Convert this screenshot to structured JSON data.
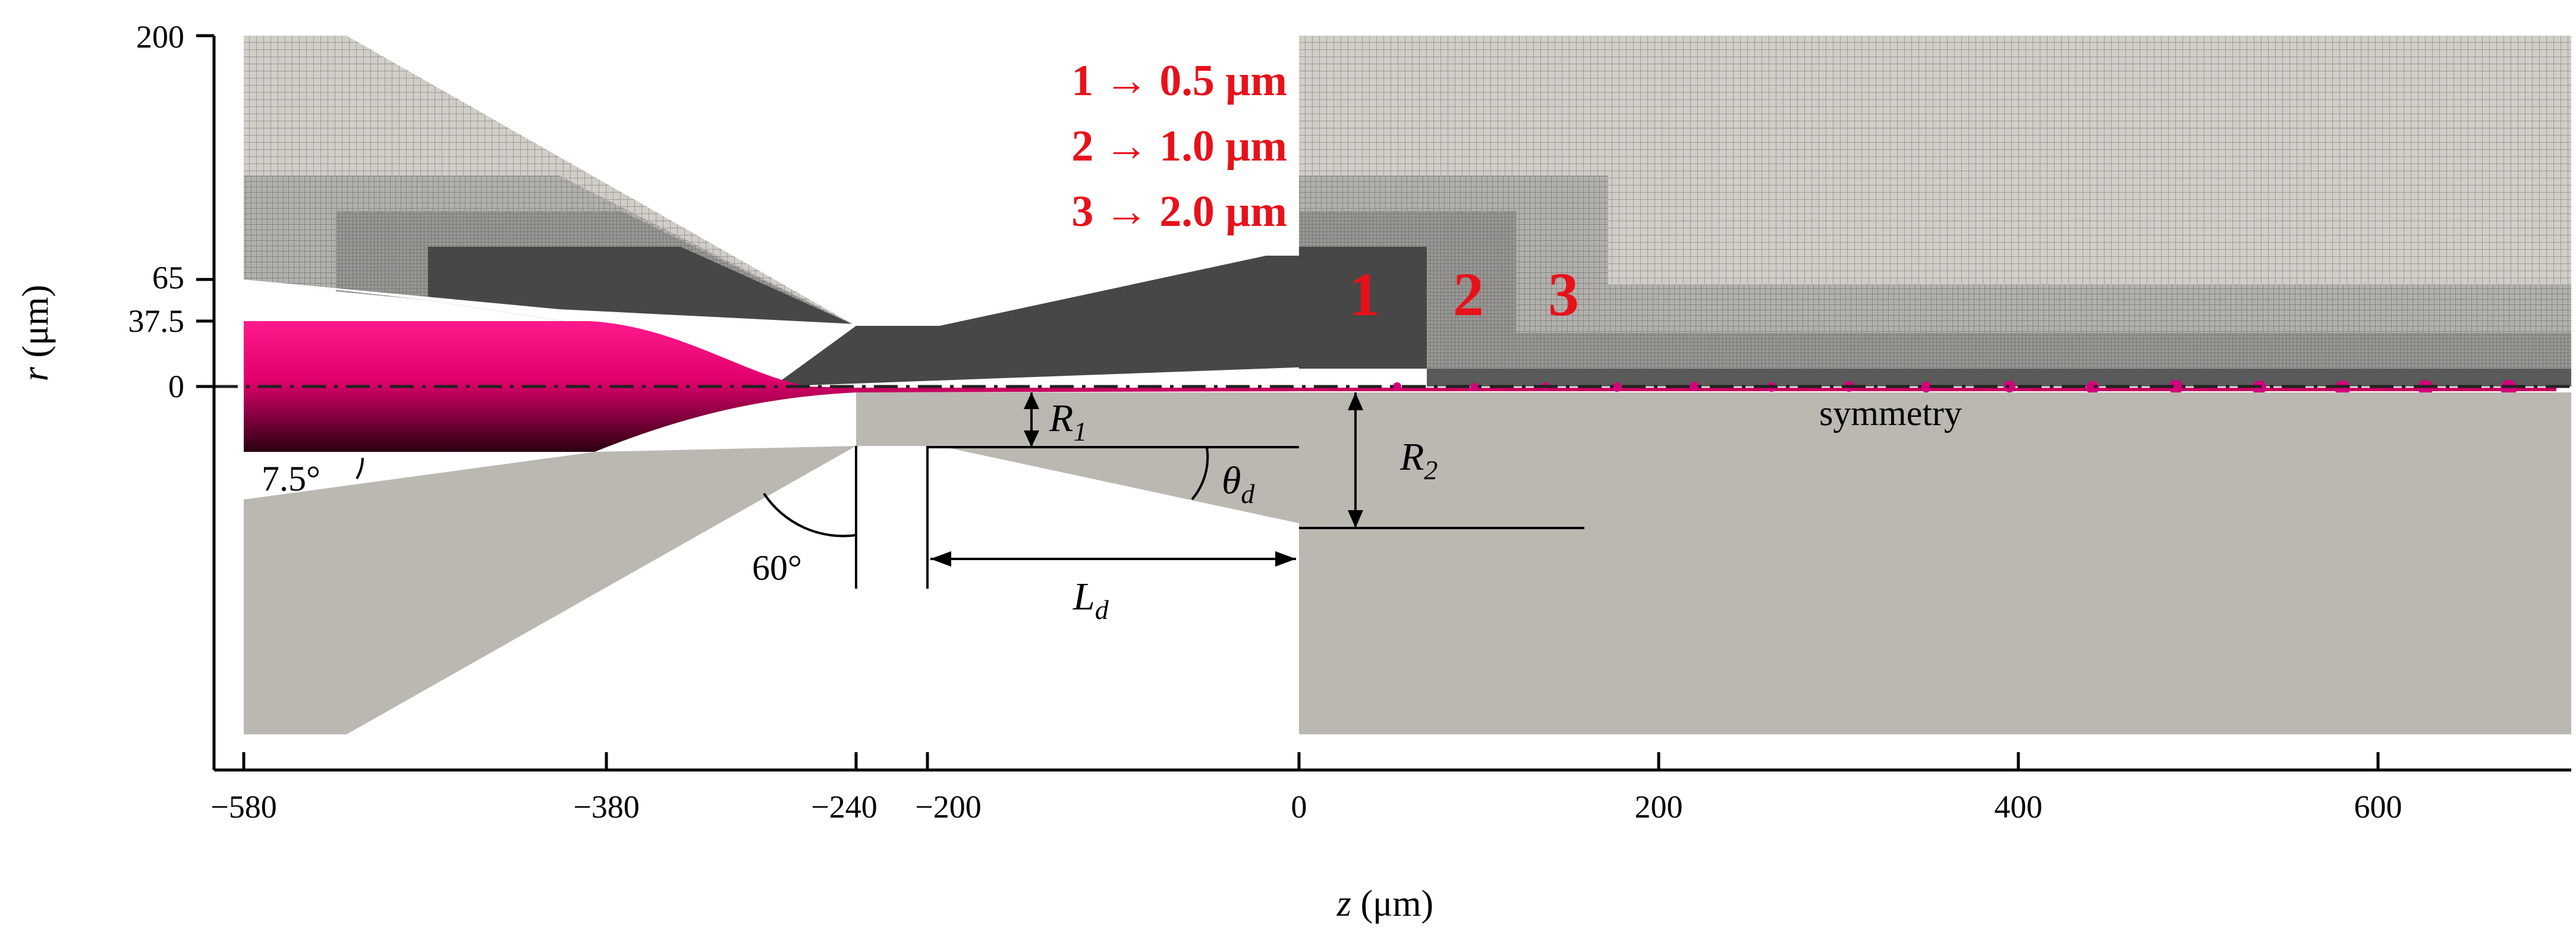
{
  "axes": {
    "x_title": "z (μm)",
    "x_title_var": "z",
    "x_title_unit": " (μm)",
    "y_title_var": "r",
    "y_title_unit": " (μm)",
    "x_ticks": [
      "−580",
      "−380",
      "−240",
      "−200",
      "0",
      "200",
      "400",
      "600"
    ],
    "y_ticks": [
      "200",
      "65",
      "37.5",
      "0"
    ],
    "x_range": [
      -580,
      700
    ],
    "y_range": [
      -195,
      200
    ]
  },
  "legend": [
    {
      "num": "1",
      "text": "1 → 0.5 μm"
    },
    {
      "num": "2",
      "text": "2 → 1.0 μm"
    },
    {
      "num": "3",
      "text": "3 → 2.0 μm"
    }
  ],
  "zone_labels": [
    "1",
    "2",
    "3"
  ],
  "annotations": {
    "symmetry": "symmetry",
    "angle_inlet": "7.5°",
    "angle_contraction": "60°",
    "r1_var": "R",
    "r1_sub": "1",
    "r2_var": "R",
    "r2_sub": "2",
    "theta_var": "θ",
    "theta_sub": "d",
    "ld_var": "L",
    "ld_sub": "d"
  },
  "colors": {
    "fluid_light": "#f5007a",
    "fluid_dark": "#3a0016",
    "legend_red": "#e8111a",
    "mesh_dark": "#4a4a4a",
    "mesh_mid": "#8c8c8c",
    "mesh_light": "#a8a8a8",
    "mesh_fine": "#c9c6c0",
    "solid_gray": "#bbb8b2"
  }
}
